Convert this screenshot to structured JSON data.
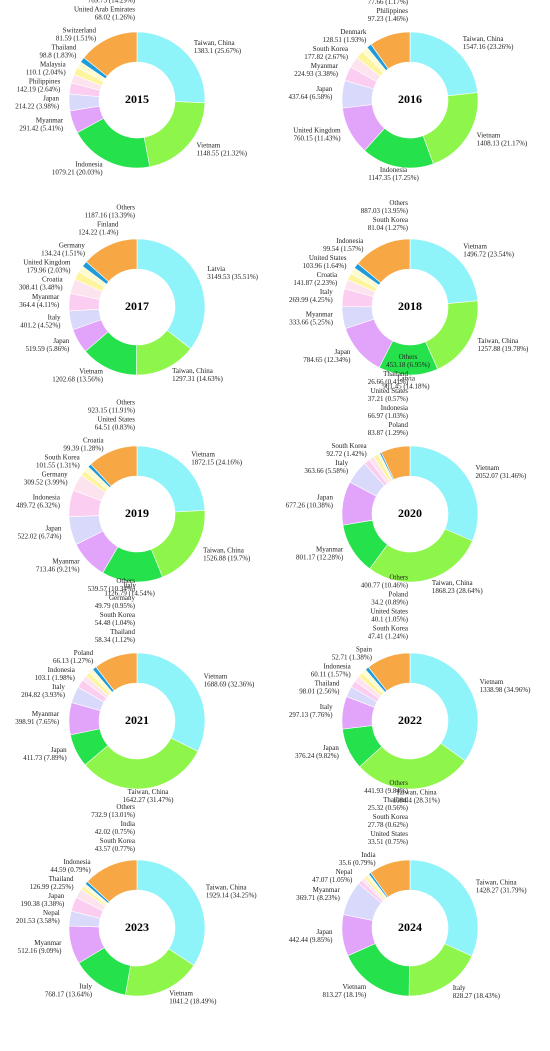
{
  "chart_data": [
    {
      "type": "donut",
      "title": "2015",
      "categories": [
        "Taiwan, China",
        "Vietnam",
        "Indonesia",
        "Myanmar",
        "Japan",
        "Philippines",
        "Malaysia",
        "Thailand",
        "Switzerland",
        "United Arab Emirates",
        "Others"
      ],
      "values": [
        1383.1,
        1148.55,
        1079.21,
        291.42,
        214.22,
        142.19,
        110.1,
        98.8,
        81.59,
        68.02,
        769.75
      ],
      "value_labels": [
        "1383.1 (25.67%)",
        "1148.55 (21.32%)",
        "1079.21 (20.03%)",
        "291.42 (5.41%)",
        "214.22 (3.98%)",
        "142.19 (2.64%)",
        "110.1 (2.04%)",
        "98.8 (1.83%)",
        "81.59 (1.51%)",
        "68.02 (1.26%)",
        "769.75 (14.29%)"
      ],
      "colors": [
        "#8ff3fa",
        "#8ef54a",
        "#25e14c",
        "#e2a3fa",
        "#d9d9fb",
        "#fbcdf1",
        "#fde3ee",
        "#fef49c",
        "#fefbd0",
        "#1e9bd8",
        "#f7a845"
      ]
    },
    {
      "type": "donut",
      "title": "2016",
      "categories": [
        "Taiwan, China",
        "Vietnam",
        "Indonesia",
        "United Kingdom",
        "Japan",
        "Myanmar",
        "South Korea",
        "Denmark",
        "Philippines",
        "Italy",
        "Others"
      ],
      "values": [
        1547.16,
        1408.13,
        1147.35,
        760.15,
        437.64,
        224.93,
        177.82,
        128.51,
        97.23,
        77.66,
        646
      ],
      "value_labels": [
        "1547.16 (23.26%)",
        "1408.13 (21.17%)",
        "1147.35 (17.25%)",
        "760.15 (11.43%)",
        "437.64 (6.58%)",
        "224.93 (3.38%)",
        "177.82 (2.67%)",
        "128.51 (1.93%)",
        "97.23 (1.46%)",
        "77.66 (1.17%)",
        "646 (9.71%)"
      ],
      "colors": [
        "#8ff3fa",
        "#8ef54a",
        "#25e14c",
        "#e2a3fa",
        "#d9d9fb",
        "#fbcdf1",
        "#fde3ee",
        "#fef49c",
        "#fefbd0",
        "#1e9bd8",
        "#f7a845"
      ]
    },
    {
      "type": "donut",
      "title": "2017",
      "categories": [
        "Latvia",
        "Taiwan, China",
        "Vietnam",
        "Japan",
        "Italy",
        "Myanmar",
        "Croatia",
        "United Kingdom",
        "Germany",
        "Finland",
        "Others"
      ],
      "values": [
        3149.53,
        1297.31,
        1202.68,
        519.59,
        401.2,
        364.4,
        308.41,
        179.96,
        134.24,
        124.22,
        1187.16
      ],
      "value_labels": [
        "3149.53 (35.51%)",
        "1297.31 (14.63%)",
        "1202.68 (13.56%)",
        "519.59 (5.86%)",
        "401.2 (4.52%)",
        "364.4 (4.11%)",
        "308.41 (3.48%)",
        "179.96 (2.03%)",
        "134.24 (1.51%)",
        "124.22 (1.4%)",
        "1187.16 (13.39%)"
      ],
      "colors": [
        "#8ff3fa",
        "#8ef54a",
        "#25e14c",
        "#e2a3fa",
        "#d9d9fb",
        "#fbcdf1",
        "#fde3ee",
        "#fef49c",
        "#fefbd0",
        "#1e9bd8",
        "#f7a845"
      ]
    },
    {
      "type": "donut",
      "title": "2018",
      "categories": [
        "Vietnam",
        "Taiwan, China",
        "Latvia",
        "Japan",
        "Myanmar",
        "Italy",
        "Croatia",
        "United States",
        "Indonesia",
        "South Korea",
        "Others"
      ],
      "values": [
        1496.72,
        1257.88,
        901.45,
        784.65,
        333.66,
        269.99,
        141.87,
        103.96,
        99.54,
        81.04,
        887.03
      ],
      "value_labels": [
        "1496.72 (23.54%)",
        "1257.88 (19.78%)",
        "901.45 (14.18%)",
        "784.65 (12.34%)",
        "333.66 (5.25%)",
        "269.99 (4.25%)",
        "141.87 (2.23%)",
        "103.96 (1.64%)",
        "99.54 (1.57%)",
        "81.04 (1.27%)",
        "887.03 (13.95%)"
      ],
      "colors": [
        "#8ff3fa",
        "#8ef54a",
        "#25e14c",
        "#e2a3fa",
        "#d9d9fb",
        "#fbcdf1",
        "#fde3ee",
        "#fef49c",
        "#fefbd0",
        "#1e9bd8",
        "#f7a845"
      ]
    },
    {
      "type": "donut",
      "title": "2019",
      "categories": [
        "Vietnam",
        "Taiwan, China",
        "Italy",
        "Myanmar",
        "Japan",
        "Indonesia",
        "Germany",
        "South Korea",
        "Croatia",
        "United States",
        "Others"
      ],
      "values": [
        1872.15,
        1526.88,
        1126.79,
        713.46,
        522.02,
        489.72,
        309.52,
        101.55,
        99.39,
        64.51,
        923.15
      ],
      "value_labels": [
        "1872.15 (24.16%)",
        "1526.88 (19.7%)",
        "1126.79 (14.54%)",
        "713.46 (9.21%)",
        "522.02 (6.74%)",
        "489.72 (6.32%)",
        "309.52 (3.99%)",
        "101.55 (1.31%)",
        "99.39 (1.28%)",
        "64.51 (0.83%)",
        "923.15 (11.91%)"
      ],
      "colors": [
        "#8ff3fa",
        "#8ef54a",
        "#25e14c",
        "#e2a3fa",
        "#d9d9fb",
        "#fbcdf1",
        "#fde3ee",
        "#fef49c",
        "#fefbd0",
        "#1e9bd8",
        "#f7a845"
      ]
    },
    {
      "type": "donut",
      "title": "2020",
      "categories": [
        "Vietnam",
        "Taiwan, China",
        "Myanmar",
        "Japan",
        "Italy",
        "South Korea",
        "Poland",
        "Indonesia",
        "United States",
        "Thailand",
        "Others"
      ],
      "values": [
        2052.07,
        1868.23,
        801.17,
        677.26,
        363.66,
        92.72,
        83.87,
        66.97,
        37.21,
        26.66,
        453.18
      ],
      "value_labels": [
        "2052.07 (31.46%)",
        "1868.23 (28.64%)",
        "801.17 (12.28%)",
        "677.26 (10.38%)",
        "363.66 (5.58%)",
        "92.72 (1.42%)",
        "83.87 (1.29%)",
        "66.97 (1.03%)",
        "37.21 (0.57%)",
        "26.66 (0.41%)",
        "453.18 (6.95%)"
      ],
      "colors": [
        "#8ff3fa",
        "#8ef54a",
        "#25e14c",
        "#e2a3fa",
        "#d9d9fb",
        "#fbcdf1",
        "#fde3ee",
        "#fef49c",
        "#fefbd0",
        "#1e9bd8",
        "#f7a845"
      ]
    },
    {
      "type": "donut",
      "title": "2021",
      "categories": [
        "Vietnam",
        "Taiwan, China",
        "Japan",
        "Myanmar",
        "Italy",
        "Indonesia",
        "Poland",
        "Thailand",
        "South Korea",
        "Germany",
        "Others"
      ],
      "values": [
        1688.69,
        1642.27,
        411.73,
        398.91,
        204.82,
        103.1,
        66.13,
        58.34,
        54.48,
        49.79,
        539.57
      ],
      "value_labels": [
        "1688.69 (32.36%)",
        "1642.27 (31.47%)",
        "411.73 (7.89%)",
        "398.91 (7.65%)",
        "204.82 (3.93%)",
        "103.1 (1.98%)",
        "66.13 (1.27%)",
        "58.34 (1.12%)",
        "54.48 (1.04%)",
        "49.79 (0.95%)",
        "539.57 (10.34%)"
      ],
      "colors": [
        "#8ff3fa",
        "#8ef54a",
        "#25e14c",
        "#e2a3fa",
        "#d9d9fb",
        "#fbcdf1",
        "#fde3ee",
        "#fef49c",
        "#fefbd0",
        "#1e9bd8",
        "#f7a845"
      ]
    },
    {
      "type": "donut",
      "title": "2022",
      "categories": [
        "Vietnam",
        "Taiwan, China",
        "Japan",
        "Italy",
        "Thailand",
        "Indonesia",
        "Spain",
        "South Korea",
        "United States",
        "Poland",
        "Others"
      ],
      "values": [
        1338.98,
        1084.4,
        376.24,
        297.13,
        98.01,
        60.11,
        52.71,
        47.41,
        40.1,
        34.2,
        400.77
      ],
      "value_labels": [
        "1338.98 (34.96%)",
        "1084.4 (28.31%)",
        "376.24 (9.82%)",
        "297.13 (7.76%)",
        "98.01 (2.56%)",
        "60.11 (1.57%)",
        "52.71 (1.38%)",
        "47.41 (1.24%)",
        "40.1 (1.05%)",
        "34.2 (0.89%)",
        "400.77 (10.46%)"
      ],
      "colors": [
        "#8ff3fa",
        "#8ef54a",
        "#25e14c",
        "#e2a3fa",
        "#d9d9fb",
        "#fbcdf1",
        "#fde3ee",
        "#fef49c",
        "#fefbd0",
        "#1e9bd8",
        "#f7a845"
      ]
    },
    {
      "type": "donut",
      "title": "2023",
      "categories": [
        "Taiwan, China",
        "Vietnam",
        "Italy",
        "Myanmar",
        "Nepal",
        "Japan",
        "Thailand",
        "Indonesia",
        "South Korea",
        "India",
        "Others"
      ],
      "values": [
        1929.14,
        1041.2,
        768.17,
        512.16,
        201.53,
        190.38,
        126.99,
        44.59,
        43.57,
        42.02,
        732.9
      ],
      "value_labels": [
        "1929.14 (34.25%)",
        "1041.2 (18.49%)",
        "768.17 (13.64%)",
        "512.16 (9.09%)",
        "201.53 (3.58%)",
        "190.38 (3.38%)",
        "126.99 (2.25%)",
        "44.59 (0.79%)",
        "43.57 (0.77%)",
        "42.02 (0.75%)",
        "732.9 (13.01%)"
      ],
      "colors": [
        "#8ff3fa",
        "#8ef54a",
        "#25e14c",
        "#e2a3fa",
        "#d9d9fb",
        "#fbcdf1",
        "#fde3ee",
        "#fef49c",
        "#fefbd0",
        "#1e9bd8",
        "#f7a845"
      ]
    },
    {
      "type": "donut",
      "title": "2024",
      "categories": [
        "Taiwan, China",
        "Italy",
        "Vietnam",
        "Japan",
        "Myanmar",
        "Nepal",
        "India",
        "United States",
        "South Korea",
        "Thailand",
        "Others"
      ],
      "values": [
        1428.27,
        828.27,
        813.27,
        442.44,
        369.71,
        47.07,
        35.6,
        33.51,
        27.78,
        25.32,
        441.93
      ],
      "value_labels": [
        "1428.27 (31.79%)",
        "828.27 (18.43%)",
        "813.27 (18.1%)",
        "442.44 (9.85%)",
        "369.71 (8.23%)",
        "47.07 (1.05%)",
        "35.6 (0.79%)",
        "33.51 (0.75%)",
        "27.78 (0.62%)",
        "25.32 (0.56%)",
        "441.93 (9.84%)"
      ],
      "colors": [
        "#8ff3fa",
        "#8ef54a",
        "#25e14c",
        "#e2a3fa",
        "#d9d9fb",
        "#fbcdf1",
        "#fde3ee",
        "#fef49c",
        "#fefbd0",
        "#1e9bd8",
        "#f7a845"
      ]
    }
  ]
}
